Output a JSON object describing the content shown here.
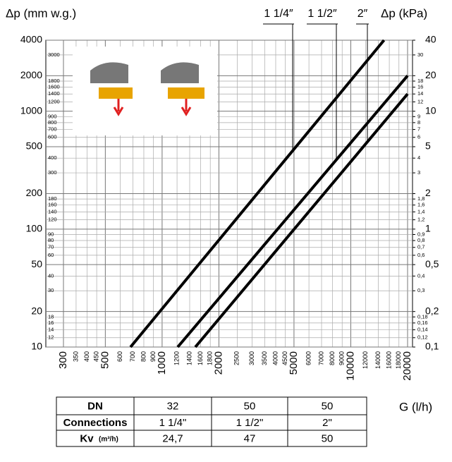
{
  "chart_data": {
    "type": "line",
    "ylabel": "Δp (mm w.g.)",
    "y2label": "Δp (kPa)",
    "xlabel": "G (l/h)",
    "xscale": "log",
    "yscale": "log",
    "grid": true,
    "xlim": [
      300,
      20000
    ],
    "ylim": [
      10,
      4000
    ],
    "y2lim": [
      0.1,
      40
    ],
    "xticks": [
      300,
      500,
      1000,
      2000,
      5000,
      10000,
      20000
    ],
    "xticks_minor": [
      350,
      400,
      450,
      600,
      700,
      800,
      900,
      1200,
      1400,
      1600,
      1800,
      2500,
      3000,
      3500,
      4000,
      4500,
      6000,
      7000,
      8000,
      9000,
      12000,
      14000,
      16000,
      18000
    ],
    "yticks": [
      10,
      20,
      50,
      100,
      200,
      500,
      1000,
      2000,
      4000
    ],
    "yticks_minor": [
      12,
      14,
      16,
      18,
      30,
      40,
      60,
      70,
      80,
      90,
      120,
      140,
      160,
      180,
      300,
      400,
      600,
      700,
      800,
      900,
      1200,
      1400,
      1600,
      1800,
      3000
    ],
    "y2ticks": [
      {
        "value": 0.1,
        "label": "0,1"
      },
      {
        "value": 0.2,
        "label": "0,2"
      },
      {
        "value": 0.5,
        "label": "0,5"
      },
      1,
      2,
      5,
      10,
      20,
      40
    ],
    "y2ticks_minor": [
      {
        "value": 0.12,
        "label": "0,12"
      },
      {
        "value": 0.14,
        "label": "0,14"
      },
      {
        "value": 0.16,
        "label": "0,16"
      },
      {
        "value": 0.18,
        "label": "0,18"
      },
      {
        "value": 0.3,
        "label": "0,3"
      },
      {
        "value": 0.4,
        "label": "0,4"
      },
      {
        "value": 0.6,
        "label": "0,6"
      },
      {
        "value": 0.7,
        "label": "0,7"
      },
      {
        "value": 0.8,
        "label": "0,8"
      },
      {
        "value": 0.9,
        "label": "0,9"
      },
      {
        "value": 1.2,
        "label": "1,2"
      },
      {
        "value": 1.4,
        "label": "1,4"
      },
      {
        "value": 1.6,
        "label": "1,6"
      },
      {
        "value": 1.8,
        "label": "1,8"
      },
      3,
      4,
      6,
      7,
      8,
      9,
      12,
      14,
      16,
      18,
      30
    ],
    "series": [
      {
        "name": "1 1/4″",
        "color": "#000000",
        "x": [
          680,
          15000
        ],
        "values": [
          10,
          4000
        ]
      },
      {
        "name": "1 1/2″",
        "color": "#000000",
        "x": [
          1210,
          20000
        ],
        "values": [
          10,
          2000
        ]
      },
      {
        "name": "2″",
        "color": "#000000",
        "x": [
          1500,
          20000
        ],
        "values": [
          10,
          1400
        ]
      }
    ]
  },
  "table": {
    "rows": [
      [
        "DN",
        "32",
        "50",
        "50"
      ],
      [
        "Connections",
        "1 1/4\"",
        "1 1/2\"",
        "2\""
      ],
      [
        "Kv",
        "24,7",
        "47",
        "50"
      ]
    ],
    "kv_unit": "(m³/h)"
  }
}
